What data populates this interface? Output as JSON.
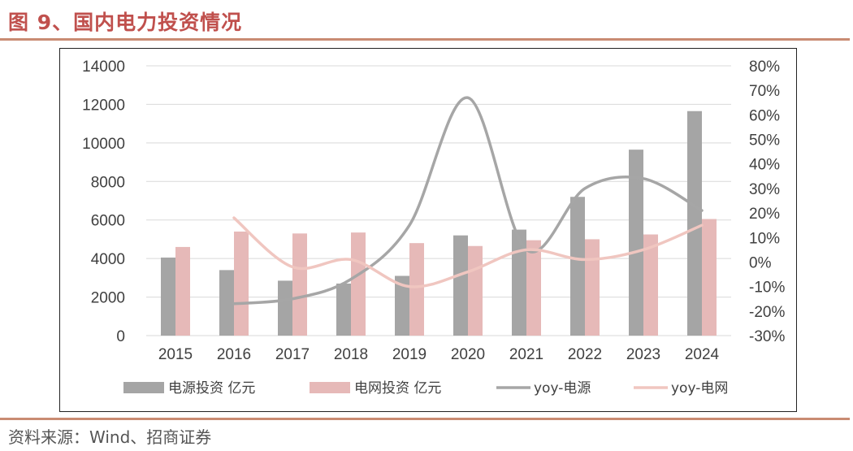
{
  "header": {
    "title": "图 9、国内电力投资情况"
  },
  "footer": {
    "source": "资料来源：Wind、招商证券"
  },
  "colors": {
    "title": "#c0504d",
    "rule": "#c98b73",
    "gray_bar": "#a5a5a5",
    "pink_bar": "#e6b9b8",
    "gray_line": "#a6a6a6",
    "pink_line": "#f0c6c0"
  },
  "chart_data": {
    "type": "bar",
    "categories": [
      "2015",
      "2016",
      "2017",
      "2018",
      "2019",
      "2020",
      "2021",
      "2022",
      "2023",
      "2024"
    ],
    "series": [
      {
        "name": "电源投资 亿元",
        "kind": "bar",
        "axis": "left",
        "color": "#a5a5a5",
        "values": [
          4050,
          3400,
          2850,
          2700,
          3100,
          5200,
          5500,
          7200,
          9650,
          11650
        ]
      },
      {
        "name": "电网投资 亿元",
        "kind": "bar",
        "axis": "left",
        "color": "#e6b9b8",
        "values": [
          4600,
          5400,
          5300,
          5350,
          4800,
          4650,
          4950,
          5000,
          5250,
          6050
        ]
      },
      {
        "name": "yoy-电源",
        "kind": "line",
        "axis": "right",
        "color": "#a6a6a6",
        "values": [
          null,
          -0.17,
          -0.15,
          -0.07,
          0.15,
          0.67,
          0.05,
          0.3,
          0.34,
          0.21
        ]
      },
      {
        "name": "yoy-电网",
        "kind": "line",
        "axis": "right",
        "color": "#f0c6c0",
        "values": [
          null,
          0.18,
          -0.02,
          0.01,
          -0.1,
          -0.04,
          0.05,
          0.01,
          0.05,
          0.15
        ]
      }
    ],
    "y_left": {
      "min": 0,
      "max": 14000,
      "ticks": [
        "0",
        "2000",
        "4000",
        "6000",
        "8000",
        "10000",
        "12000",
        "14000"
      ]
    },
    "y_right": {
      "min": -0.3,
      "max": 0.8,
      "ticks": [
        "-30%",
        "-20%",
        "-10%",
        "0%",
        "10%",
        "20%",
        "30%",
        "40%",
        "50%",
        "60%",
        "70%",
        "80%"
      ]
    },
    "grid": true,
    "legend": "bottom"
  }
}
